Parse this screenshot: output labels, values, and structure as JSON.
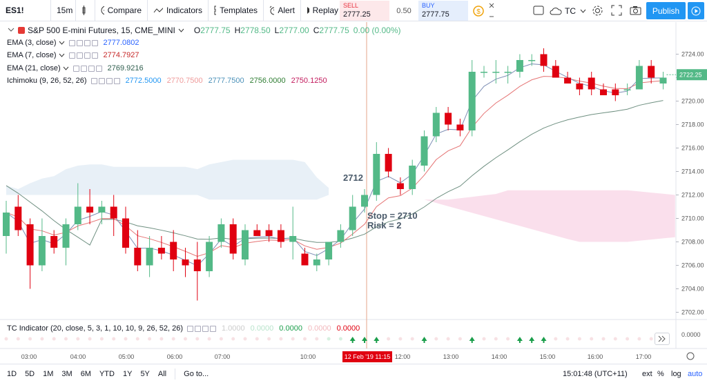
{
  "toolbar": {
    "symbol": "ES1!",
    "interval": "15m",
    "compare": "Compare",
    "indicators": "Indicators",
    "templates": "Templates",
    "alert": "Alert",
    "replay": "Replay",
    "sell_label": "SELL",
    "sell_price": "2777.25",
    "spread": "0.50",
    "buy_label": "BUY",
    "buy_price": "2777.75",
    "layout_name": "TC",
    "publish": "Publish"
  },
  "legend": {
    "title": "S&P 500 E-mini Futures, 15, CME_MINI",
    "o": "2777.75",
    "h": "2778.50",
    "l": "2777.00",
    "c": "2777.75",
    "change": "0.00 (0.00%)",
    "ema3_label": "EMA (3, close)",
    "ema3_val": "2777.0802",
    "ema7_label": "EMA (7, close)",
    "ema7_val": "2774.7927",
    "ema21_label": "EMA (21, close)",
    "ema21_val": "2769.9216",
    "ichimoku_label": "Ichimoku (9, 26, 52, 26)",
    "ichi_v1": "2772.5000",
    "ichi_v2": "2770.7500",
    "ichi_v3": "2777.7500",
    "ichi_v4": "2756.0000",
    "ichi_v5": "2750.1250"
  },
  "annotations": {
    "level": "2712",
    "stop": "Stop = 2710",
    "risk": "Risk = 2"
  },
  "price_scale": {
    "ticks": [
      "2724.00",
      "2722.00",
      "2720.00",
      "2718.00",
      "2716.00",
      "2714.00",
      "2712.00",
      "2710.00",
      "2708.00",
      "2706.00",
      "2704.00",
      "2702.00"
    ],
    "current": "2722.25"
  },
  "time_axis": {
    "ticks": [
      "03:00",
      "04:00",
      "05:00",
      "06:00",
      "07:00",
      "10:00",
      "12:00",
      "13:00",
      "14:00",
      "15:00",
      "16:00",
      "17:00"
    ],
    "crosshair_label": "12 Feb '19   11:15"
  },
  "indicator_pane": {
    "label": "TC Indicator (20, close, 5, 3, 1, 10, 10, 9, 26, 52, 26)",
    "v1": "1.0000",
    "v2": "0.0000",
    "v3": "0.0000",
    "v4": "0.0000",
    "v5": "0.0000",
    "scale": "0.0000"
  },
  "bottom": {
    "ranges": [
      "1D",
      "5D",
      "1M",
      "3M",
      "6M",
      "YTD",
      "1Y",
      "5Y",
      "All"
    ],
    "goto": "Go to...",
    "clock": "15:01:48 (UTC+11)",
    "ext": "ext",
    "pct": "%",
    "log": "log",
    "auto": "auto"
  },
  "colors": {
    "up": "#53b987",
    "down": "#e00010",
    "ema3": "#2962ff",
    "ema7": "#e53935",
    "ema21": "#2f5e4e"
  },
  "chart_data": {
    "type": "candlestick",
    "y_range": [
      2701.5,
      2725.5
    ],
    "candles": [
      {
        "o": 2708.5,
        "h": 2711.5,
        "l": 2707.0,
        "c": 2710.5
      },
      {
        "o": 2711.0,
        "h": 2712.0,
        "l": 2708.5,
        "c": 2709.0
      },
      {
        "o": 2709.5,
        "h": 2710.0,
        "l": 2704.0,
        "c": 2706.0
      },
      {
        "o": 2706.0,
        "h": 2710.0,
        "l": 2705.5,
        "c": 2708.5
      },
      {
        "o": 2708.5,
        "h": 2709.0,
        "l": 2707.0,
        "c": 2707.5
      },
      {
        "o": 2707.5,
        "h": 2710.0,
        "l": 2706.0,
        "c": 2709.5
      },
      {
        "o": 2709.5,
        "h": 2713.0,
        "l": 2709.0,
        "c": 2711.0
      },
      {
        "o": 2711.0,
        "h": 2712.5,
        "l": 2709.5,
        "c": 2710.5
      },
      {
        "o": 2710.5,
        "h": 2711.5,
        "l": 2709.5,
        "c": 2711.0
      },
      {
        "o": 2711.0,
        "h": 2712.0,
        "l": 2708.5,
        "c": 2710.0
      },
      {
        "o": 2710.0,
        "h": 2711.0,
        "l": 2707.0,
        "c": 2707.5
      },
      {
        "o": 2707.5,
        "h": 2709.0,
        "l": 2705.5,
        "c": 2706.0
      },
      {
        "o": 2706.0,
        "h": 2708.5,
        "l": 2705.0,
        "c": 2707.5
      },
      {
        "o": 2707.5,
        "h": 2708.5,
        "l": 2706.5,
        "c": 2707.0
      },
      {
        "o": 2708.0,
        "h": 2709.0,
        "l": 2705.5,
        "c": 2706.5
      },
      {
        "o": 2706.5,
        "h": 2707.5,
        "l": 2705.0,
        "c": 2706.0
      },
      {
        "o": 2706.5,
        "h": 2708.0,
        "l": 2703.0,
        "c": 2705.5
      },
      {
        "o": 2705.5,
        "h": 2708.5,
        "l": 2705.0,
        "c": 2708.0
      },
      {
        "o": 2708.0,
        "h": 2710.0,
        "l": 2707.5,
        "c": 2709.5
      },
      {
        "o": 2709.5,
        "h": 2710.0,
        "l": 2706.5,
        "c": 2707.0
      },
      {
        "o": 2706.5,
        "h": 2709.5,
        "l": 2706.0,
        "c": 2709.0
      },
      {
        "o": 2709.0,
        "h": 2709.5,
        "l": 2708.5,
        "c": 2708.5
      },
      {
        "o": 2709.0,
        "h": 2709.5,
        "l": 2708.0,
        "c": 2708.5
      },
      {
        "o": 2709.0,
        "h": 2709.5,
        "l": 2707.5,
        "c": 2708.0
      },
      {
        "o": 2708.0,
        "h": 2711.0,
        "l": 2706.5,
        "c": 2708.5
      },
      {
        "o": 2707.0,
        "h": 2707.5,
        "l": 2706.0,
        "c": 2706.0
      },
      {
        "o": 2706.0,
        "h": 2707.0,
        "l": 2705.5,
        "c": 2706.5
      },
      {
        "o": 2706.5,
        "h": 2708.0,
        "l": 2706.0,
        "c": 2708.0
      },
      {
        "o": 2708.0,
        "h": 2709.5,
        "l": 2707.5,
        "c": 2709.0
      },
      {
        "o": 2709.0,
        "h": 2712.0,
        "l": 2708.5,
        "c": 2711.0
      },
      {
        "o": 2711.0,
        "h": 2712.5,
        "l": 2710.5,
        "c": 2712.0
      },
      {
        "o": 2712.0,
        "h": 2716.5,
        "l": 2711.5,
        "c": 2715.5
      },
      {
        "o": 2715.5,
        "h": 2716.0,
        "l": 2713.5,
        "c": 2714.0
      },
      {
        "o": 2713.0,
        "h": 2713.5,
        "l": 2712.0,
        "c": 2712.5
      },
      {
        "o": 2712.5,
        "h": 2715.0,
        "l": 2712.0,
        "c": 2714.5
      },
      {
        "o": 2714.5,
        "h": 2717.5,
        "l": 2714.0,
        "c": 2717.0
      },
      {
        "o": 2717.0,
        "h": 2719.5,
        "l": 2716.5,
        "c": 2719.0
      },
      {
        "o": 2719.0,
        "h": 2719.5,
        "l": 2717.5,
        "c": 2718.0
      },
      {
        "o": 2718.0,
        "h": 2718.5,
        "l": 2717.0,
        "c": 2717.5
      },
      {
        "o": 2717.5,
        "h": 2723.5,
        "l": 2717.0,
        "c": 2722.5
      },
      {
        "o": 2722.5,
        "h": 2723.0,
        "l": 2722.0,
        "c": 2722.5
      },
      {
        "o": 2722.5,
        "h": 2723.5,
        "l": 2721.5,
        "c": 2722.5
      },
      {
        "o": 2722.5,
        "h": 2723.0,
        "l": 2721.5,
        "c": 2722.5
      },
      {
        "o": 2722.5,
        "h": 2724.0,
        "l": 2722.0,
        "c": 2723.5
      },
      {
        "o": 2723.5,
        "h": 2724.0,
        "l": 2723.0,
        "c": 2723.5
      },
      {
        "o": 2724.0,
        "h": 2724.5,
        "l": 2722.5,
        "c": 2723.0
      },
      {
        "o": 2723.0,
        "h": 2723.5,
        "l": 2722.0,
        "c": 2722.0
      },
      {
        "o": 2722.0,
        "h": 2722.5,
        "l": 2721.5,
        "c": 2721.5
      },
      {
        "o": 2721.5,
        "h": 2722.0,
        "l": 2720.5,
        "c": 2721.0
      },
      {
        "o": 2722.0,
        "h": 2722.5,
        "l": 2720.5,
        "c": 2721.0
      },
      {
        "o": 2721.0,
        "h": 2721.5,
        "l": 2720.5,
        "c": 2720.5
      },
      {
        "o": 2721.0,
        "h": 2721.5,
        "l": 2720.0,
        "c": 2720.5
      },
      {
        "o": 2721.0,
        "h": 2721.5,
        "l": 2720.5,
        "c": 2721.0
      },
      {
        "o": 2721.0,
        "h": 2723.5,
        "l": 2721.0,
        "c": 2723.0
      },
      {
        "o": 2723.0,
        "h": 2723.5,
        "l": 2721.5,
        "c": 2722.0
      },
      {
        "o": 2721.5,
        "h": 2722.5,
        "l": 2721.0,
        "c": 2722.0
      }
    ],
    "signal_arrows": [
      29,
      30,
      31,
      35,
      39,
      43,
      44,
      45
    ]
  }
}
